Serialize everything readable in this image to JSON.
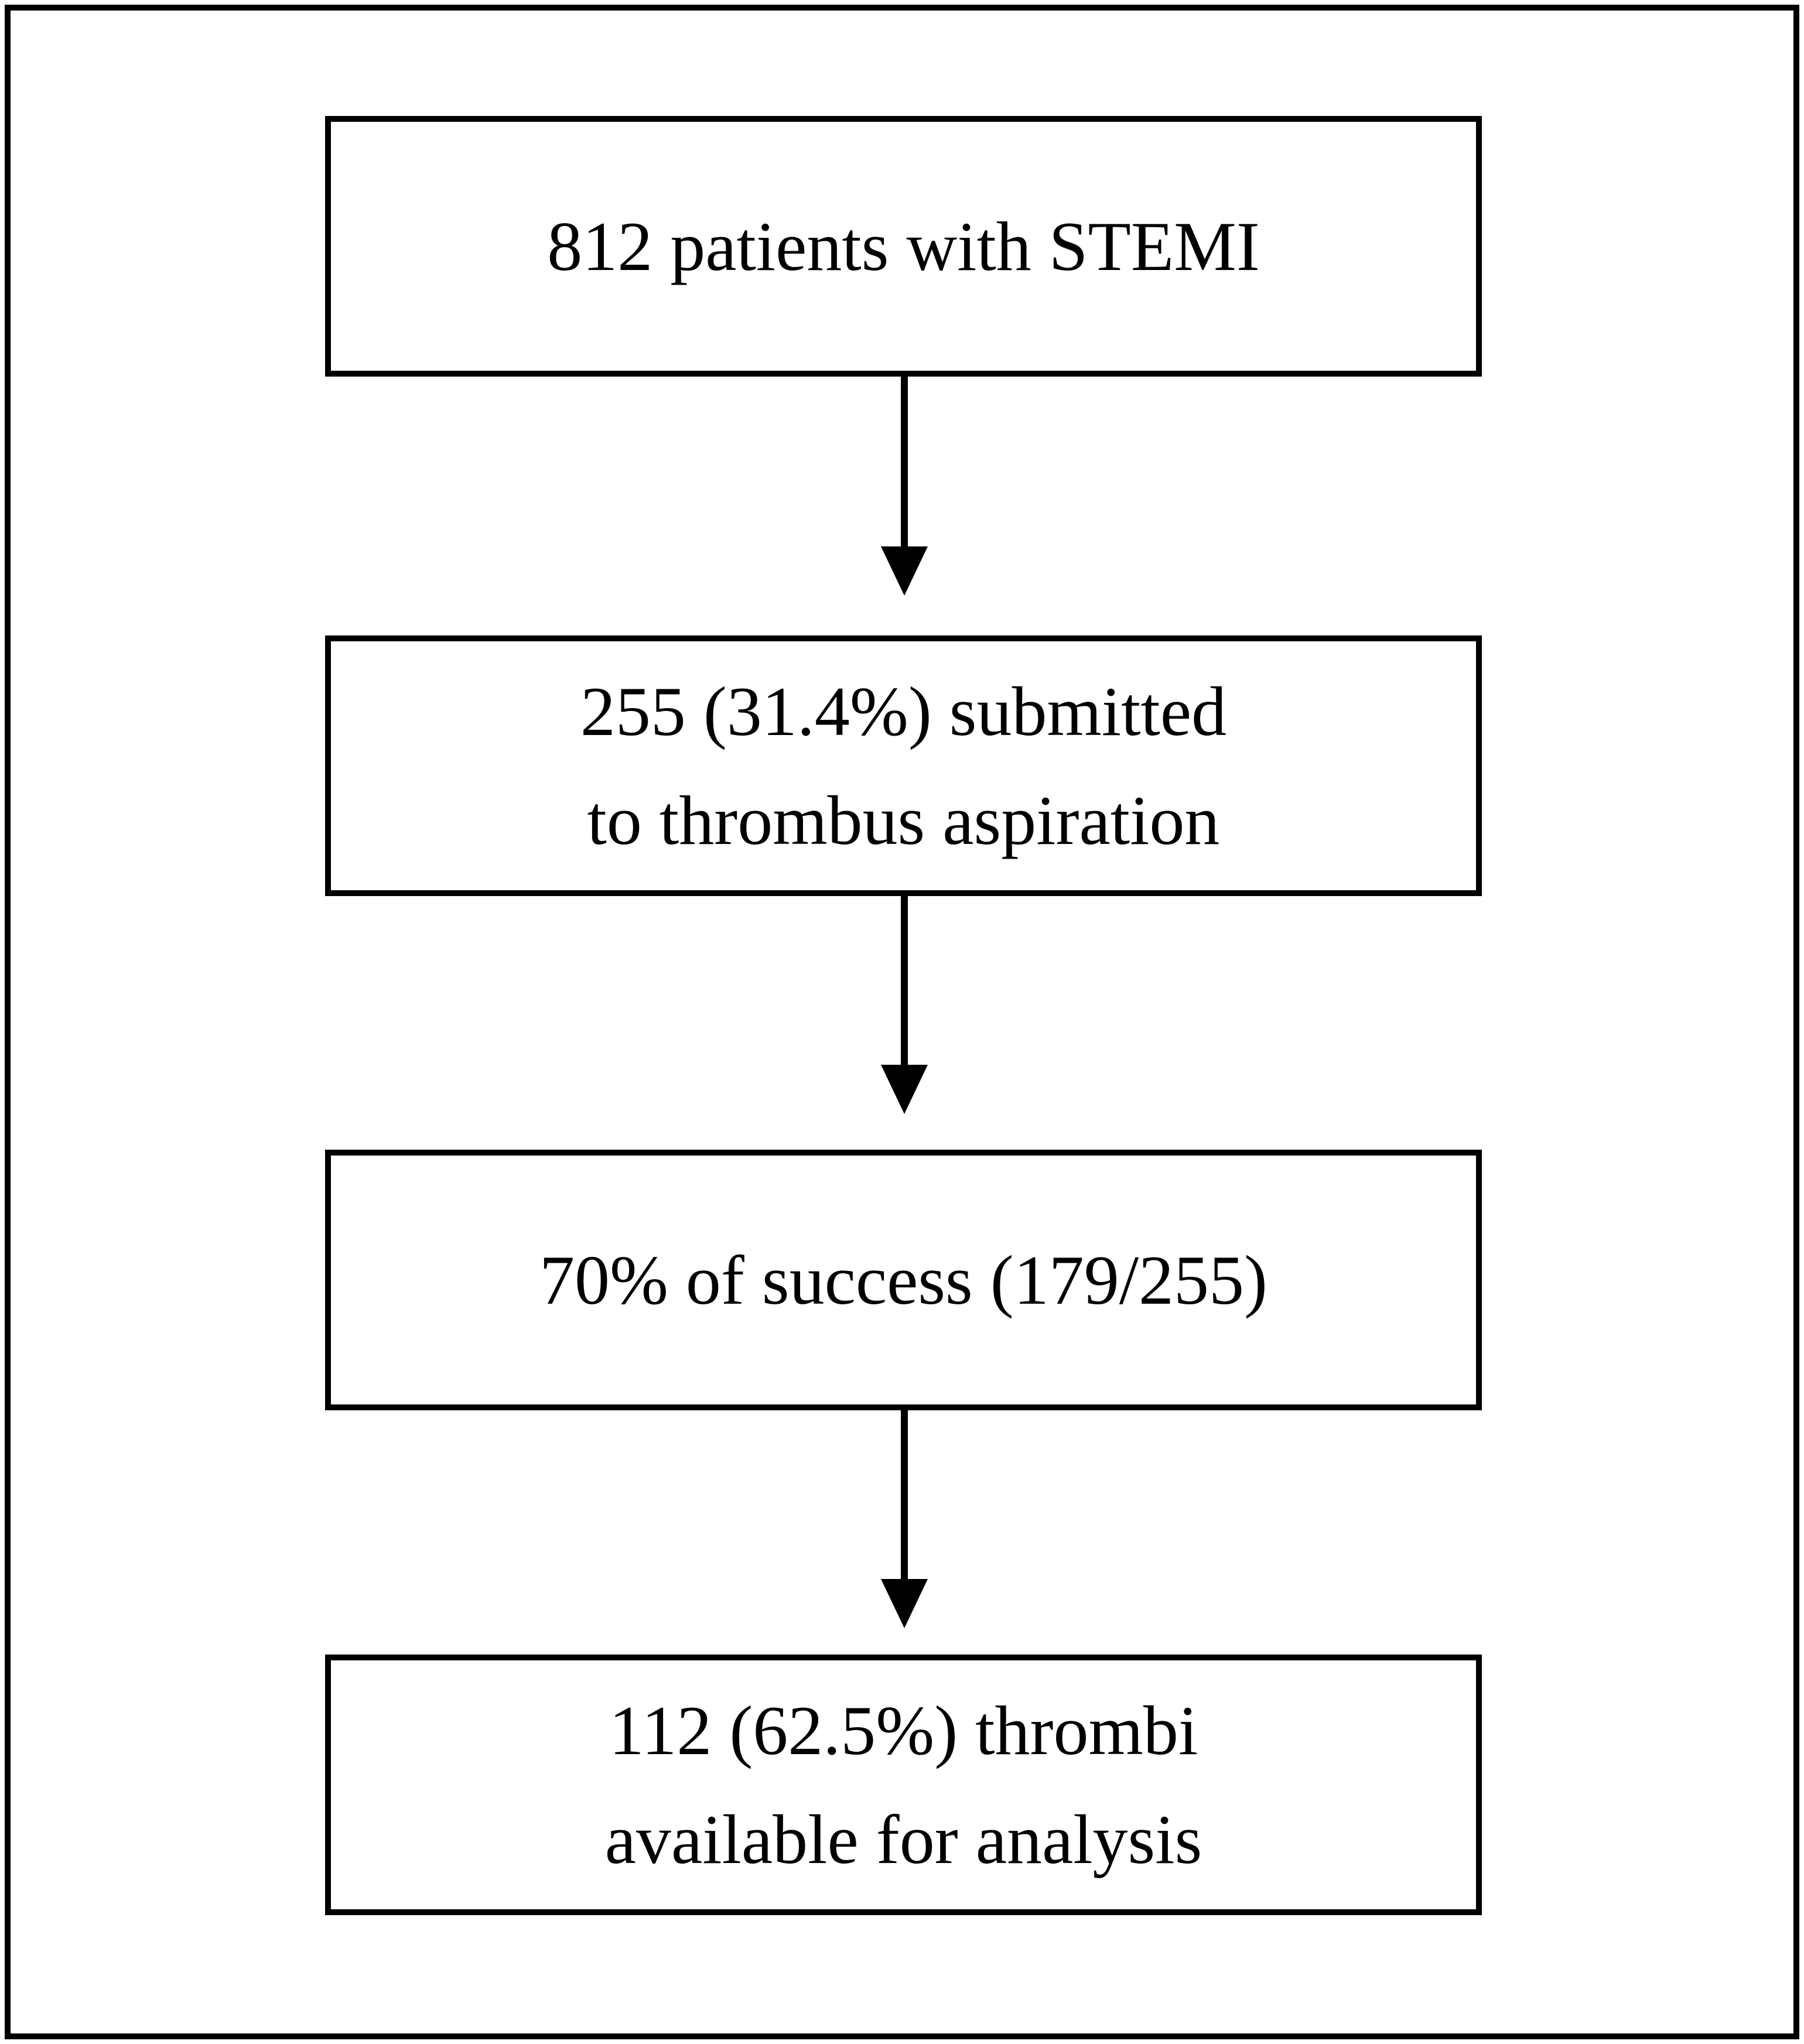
{
  "figure": {
    "type": "flowchart",
    "direction": "top-down",
    "background": "#ffffff",
    "line_color": "#000000",
    "text_color": "#000000",
    "nodes": [
      {
        "id": "stemi-patients",
        "lines": [
          "812 patients with STEMI",
          ""
        ]
      },
      {
        "id": "thrombus-aspiration",
        "lines": [
          "255 (31.4%) submitted",
          "to thrombus aspiration"
        ]
      },
      {
        "id": "aspiration-success",
        "lines": [
          "70% of success (179/255)",
          ""
        ]
      },
      {
        "id": "thrombi-analysis",
        "lines": [
          "112 (62.5%) thrombi",
          "available for analysis"
        ]
      }
    ],
    "connectors": [
      {
        "from": "stemi-patients",
        "to": "thrombus-aspiration",
        "style": "arrow-down"
      },
      {
        "from": "thrombus-aspiration",
        "to": "aspiration-success",
        "style": "arrow-down"
      },
      {
        "from": "aspiration-success",
        "to": "thrombi-analysis",
        "style": "arrow-down"
      }
    ]
  }
}
